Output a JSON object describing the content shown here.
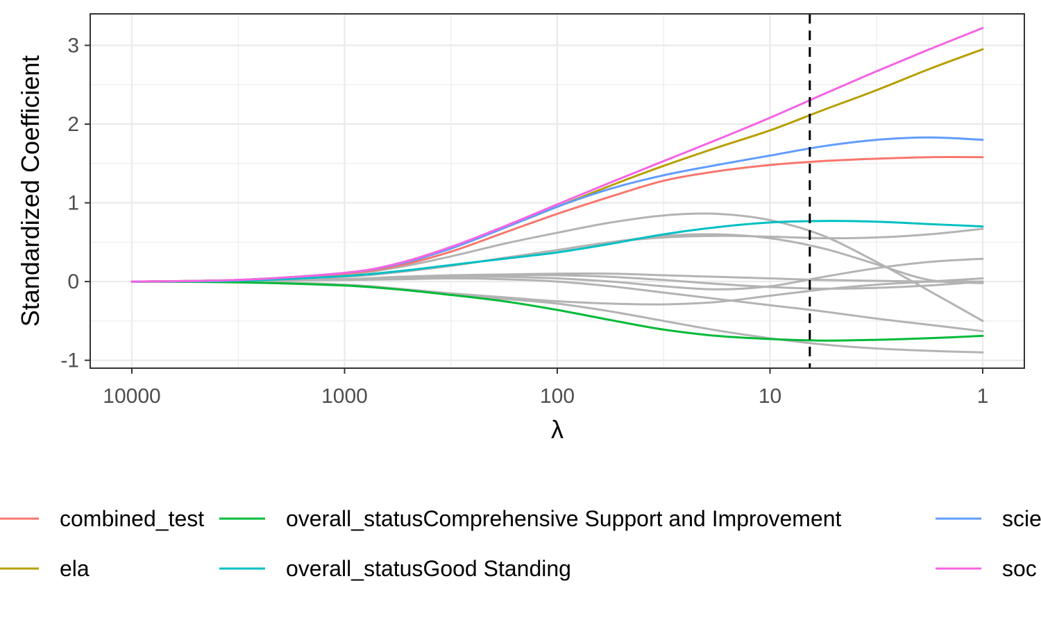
{
  "chart_data": {
    "type": "line",
    "title": "",
    "xlabel": "λ",
    "ylabel": "Standardized Coefficient",
    "x_scale": "log10-reversed",
    "xlim": [
      10000,
      1
    ],
    "ylim": [
      -1.1,
      3.4
    ],
    "x_ticks": [
      10000,
      1000,
      100,
      10,
      1
    ],
    "x_tick_labels": [
      "10000",
      "1000",
      "100",
      "10",
      "1"
    ],
    "y_ticks": [
      -1,
      0,
      1,
      2,
      3
    ],
    "y_tick_labels": [
      "-1",
      "0",
      "1",
      "2",
      "3"
    ],
    "grid": true,
    "legend_position": "bottom",
    "vline": {
      "x": 6.5,
      "style": "dashed",
      "color": "#000000"
    },
    "lambda": [
      10000,
      3162,
      1000,
      562,
      316,
      178,
      100,
      56,
      31.6,
      17.8,
      10,
      5.6,
      3.16,
      1.78,
      1
    ],
    "series": [
      {
        "name": "combined_test",
        "color": "#F8766D",
        "values": [
          0,
          0.02,
          0.1,
          0.2,
          0.38,
          0.62,
          0.86,
          1.08,
          1.28,
          1.4,
          1.48,
          1.53,
          1.56,
          1.58,
          1.58
        ]
      },
      {
        "name": "ela",
        "color": "#B79F00",
        "values": [
          0,
          0.02,
          0.11,
          0.22,
          0.42,
          0.68,
          0.95,
          1.22,
          1.47,
          1.7,
          1.92,
          2.18,
          2.43,
          2.7,
          2.95
        ]
      },
      {
        "name": "overall_statusComprehensive Support and Improvement",
        "color": "#00BA38",
        "values": [
          0,
          -0.01,
          -0.05,
          -0.1,
          -0.17,
          -0.25,
          -0.36,
          -0.49,
          -0.61,
          -0.69,
          -0.73,
          -0.75,
          -0.74,
          -0.72,
          -0.69
        ]
      },
      {
        "name": "overall_statusGood Standing",
        "color": "#00BFC4",
        "values": [
          0,
          0.01,
          0.07,
          0.13,
          0.21,
          0.29,
          0.37,
          0.48,
          0.6,
          0.69,
          0.75,
          0.77,
          0.76,
          0.73,
          0.7
        ]
      },
      {
        "name": "scie",
        "color": "#619CFF",
        "values": [
          0,
          0.02,
          0.11,
          0.22,
          0.42,
          0.68,
          0.95,
          1.18,
          1.35,
          1.48,
          1.6,
          1.72,
          1.8,
          1.83,
          1.8
        ]
      },
      {
        "name": "soc",
        "color": "#F564E3",
        "values": [
          0,
          0.02,
          0.11,
          0.23,
          0.44,
          0.7,
          0.98,
          1.26,
          1.53,
          1.8,
          2.08,
          2.38,
          2.67,
          2.95,
          3.22
        ]
      },
      {
        "name": "",
        "color": "#B3B3B3",
        "values": [
          0,
          0.02,
          0.09,
          0.18,
          0.32,
          0.48,
          0.62,
          0.75,
          0.84,
          0.86,
          0.78,
          0.58,
          0.25,
          -0.12,
          -0.5
        ]
      },
      {
        "name": "",
        "color": "#B3B3B3",
        "values": [
          0,
          0.01,
          0.06,
          0.12,
          0.2,
          0.3,
          0.4,
          0.5,
          0.56,
          0.58,
          0.57,
          0.55,
          0.56,
          0.6,
          0.67
        ]
      },
      {
        "name": "",
        "color": "#B3B3B3",
        "values": [
          0,
          0.01,
          0.06,
          0.12,
          0.2,
          0.3,
          0.4,
          0.5,
          0.58,
          0.6,
          0.55,
          0.42,
          0.22,
          0.02,
          -0.02
        ]
      },
      {
        "name": "",
        "color": "#B3B3B3",
        "values": [
          0,
          0.01,
          0.03,
          0.06,
          0.08,
          0.09,
          0.1,
          0.1,
          0.08,
          0.06,
          0.04,
          0.02,
          0.01,
          0,
          0
        ]
      },
      {
        "name": "",
        "color": "#B3B3B3",
        "values": [
          0,
          0.01,
          0.03,
          0.05,
          0.07,
          0.08,
          0.08,
          0.06,
          0.02,
          -0.03,
          -0.07,
          -0.09,
          -0.08,
          -0.05,
          0
        ]
      },
      {
        "name": "",
        "color": "#B3B3B3",
        "values": [
          0,
          0.01,
          0.02,
          0.03,
          0.04,
          0.03,
          0.0,
          -0.06,
          -0.14,
          -0.22,
          -0.3,
          -0.38,
          -0.47,
          -0.55,
          -0.63
        ]
      },
      {
        "name": "",
        "color": "#B3B3B3",
        "values": [
          0,
          0.01,
          0.02,
          0.04,
          0.06,
          0.06,
          0.04,
          0.0,
          -0.06,
          -0.1,
          -0.06,
          0.06,
          0.17,
          0.25,
          0.29
        ]
      },
      {
        "name": "",
        "color": "#B3B3B3",
        "values": [
          0,
          0.0,
          -0.04,
          -0.09,
          -0.15,
          -0.2,
          -0.25,
          -0.28,
          -0.29,
          -0.26,
          -0.18,
          -0.1,
          -0.04,
          0.0,
          0.04
        ]
      },
      {
        "name": "",
        "color": "#B3B3B3",
        "values": [
          0,
          -0.01,
          -0.05,
          -0.1,
          -0.16,
          -0.22,
          -0.28,
          -0.38,
          -0.5,
          -0.62,
          -0.72,
          -0.8,
          -0.85,
          -0.88,
          -0.9
        ]
      }
    ]
  },
  "legend": {
    "items": [
      {
        "label": "combined_test",
        "color": "#F8766D"
      },
      {
        "label": "ela",
        "color": "#B79F00"
      },
      {
        "label": "overall_statusComprehensive Support and Improvement",
        "color": "#00BA38"
      },
      {
        "label": "overall_statusGood Standing",
        "color": "#00BFC4"
      },
      {
        "label": "scie",
        "color": "#619CFF"
      },
      {
        "label": "soc",
        "color": "#F564E3"
      }
    ]
  }
}
